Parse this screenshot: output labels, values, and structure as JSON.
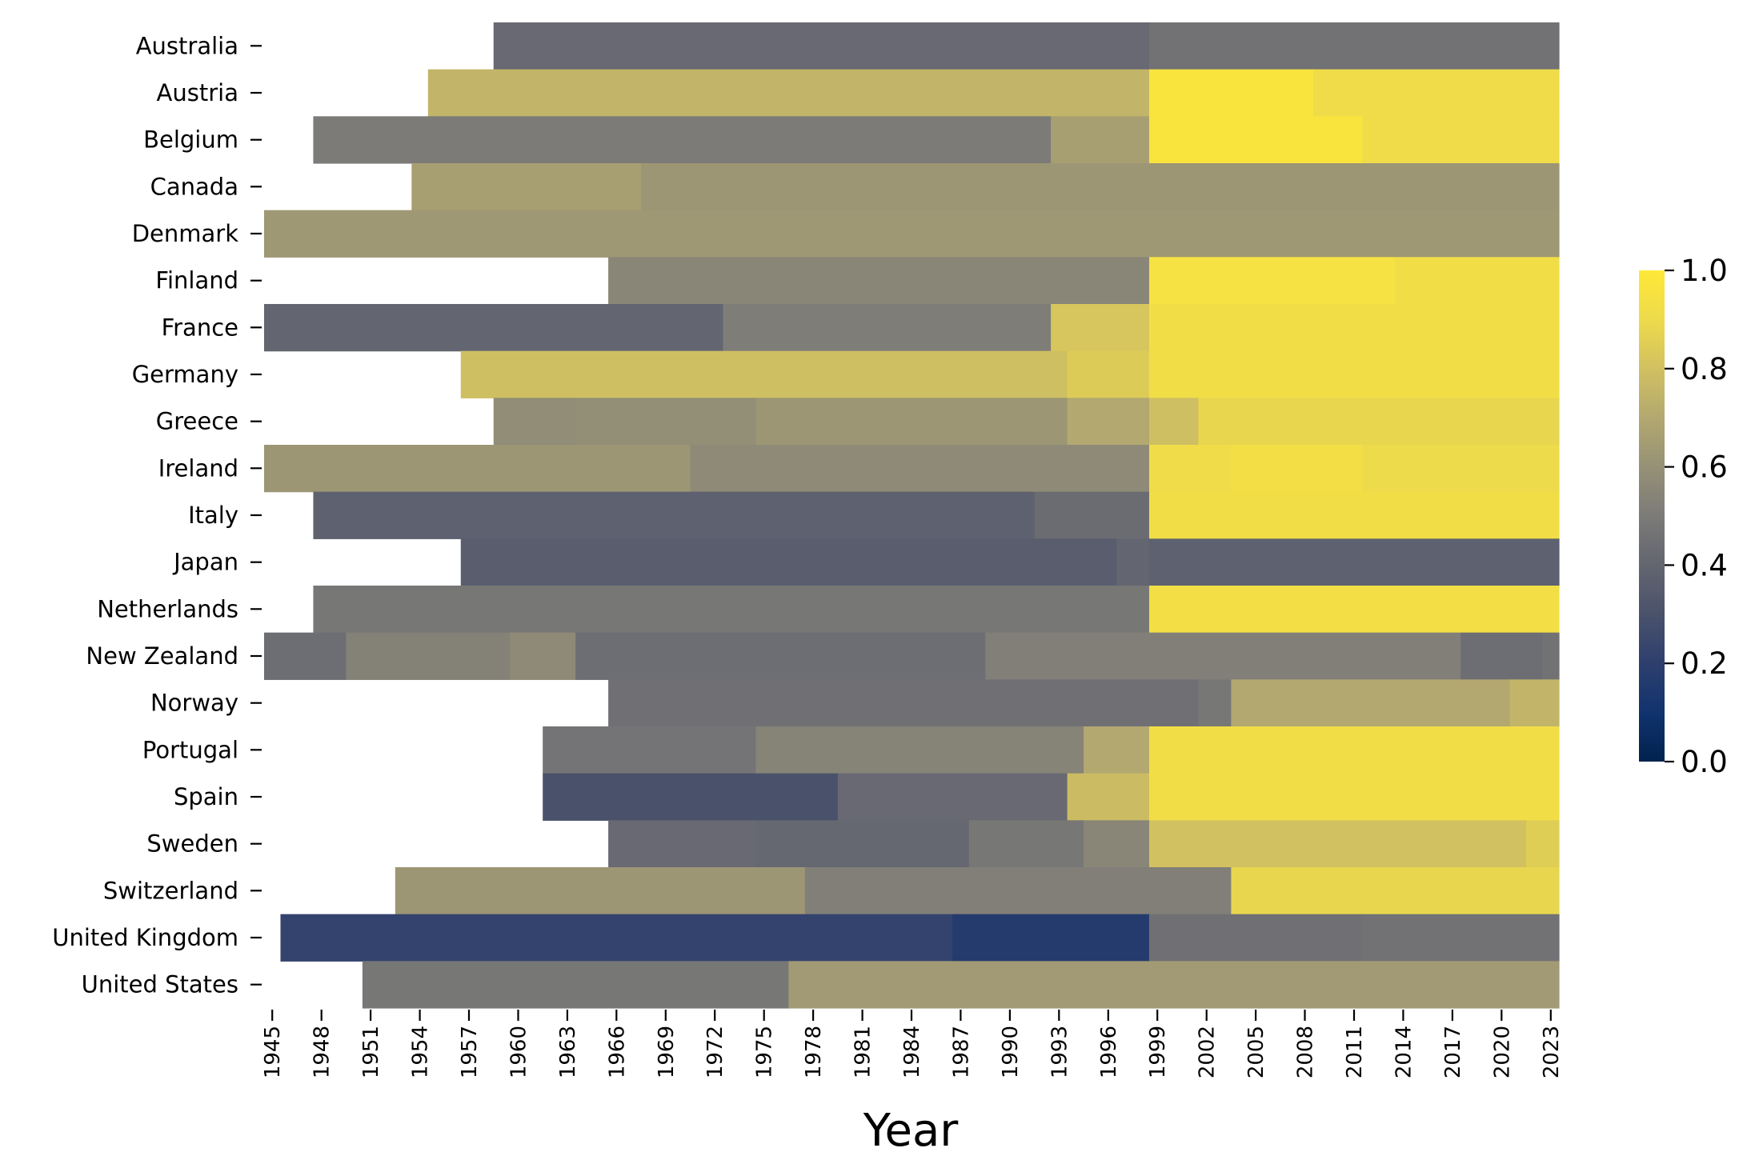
{
  "chart_data": {
    "type": "heatmap",
    "title": "",
    "xlabel": "Year",
    "ylabel": "",
    "colormap": "cividis",
    "colorbar": {
      "min": 0.0,
      "max": 1.0,
      "ticks": [
        "0.0",
        "0.2",
        "0.4",
        "0.6",
        "0.8",
        "1.0"
      ]
    },
    "year_range": [
      1945,
      2023
    ],
    "x_ticks": [
      "1945",
      "1948",
      "1951",
      "1954",
      "1957",
      "1960",
      "1963",
      "1966",
      "1969",
      "1972",
      "1975",
      "1978",
      "1981",
      "1984",
      "1987",
      "1990",
      "1993",
      "1996",
      "1999",
      "2002",
      "2005",
      "2008",
      "2011",
      "2014",
      "2017",
      "2020",
      "2023"
    ],
    "rows": [
      {
        "country": "Australia",
        "segments": [
          {
            "from": 1959,
            "to": 1998,
            "value": 0.42
          },
          {
            "from": 1999,
            "to": 2023,
            "value": 0.46
          }
        ]
      },
      {
        "country": "Austria",
        "segments": [
          {
            "from": 1955,
            "to": 1998,
            "value": 0.75
          },
          {
            "from": 1999,
            "to": 2008,
            "value": 0.97
          },
          {
            "from": 2009,
            "to": 2023,
            "value": 0.91
          }
        ]
      },
      {
        "country": "Belgium",
        "segments": [
          {
            "from": 1948,
            "to": 1992,
            "value": 0.5
          },
          {
            "from": 1993,
            "to": 1998,
            "value": 0.66
          },
          {
            "from": 1999,
            "to": 2011,
            "value": 0.97
          },
          {
            "from": 2012,
            "to": 2023,
            "value": 0.91
          }
        ]
      },
      {
        "country": "Canada",
        "segments": [
          {
            "from": 1954,
            "to": 1967,
            "value": 0.66
          },
          {
            "from": 1968,
            "to": 2023,
            "value": 0.62
          }
        ]
      },
      {
        "country": "Denmark",
        "segments": [
          {
            "from": 1945,
            "to": 2023,
            "value": 0.63
          }
        ]
      },
      {
        "country": "Finland",
        "segments": [
          {
            "from": 1966,
            "to": 1998,
            "value": 0.55
          },
          {
            "from": 1999,
            "to": 2013,
            "value": 0.95
          },
          {
            "from": 2014,
            "to": 2023,
            "value": 0.92
          }
        ]
      },
      {
        "country": "France",
        "segments": [
          {
            "from": 1945,
            "to": 1972,
            "value": 0.4
          },
          {
            "from": 1973,
            "to": 1992,
            "value": 0.51
          },
          {
            "from": 1993,
            "to": 1998,
            "value": 0.82
          },
          {
            "from": 1999,
            "to": 2023,
            "value": 0.92
          }
        ]
      },
      {
        "country": "Germany",
        "segments": [
          {
            "from": 1957,
            "to": 1993,
            "value": 0.79
          },
          {
            "from": 1994,
            "to": 1998,
            "value": 0.84
          },
          {
            "from": 1999,
            "to": 2023,
            "value": 0.92
          }
        ]
      },
      {
        "country": "Greece",
        "segments": [
          {
            "from": 1959,
            "to": 1963,
            "value": 0.58
          },
          {
            "from": 1964,
            "to": 1974,
            "value": 0.59
          },
          {
            "from": 1975,
            "to": 1993,
            "value": 0.62
          },
          {
            "from": 1994,
            "to": 1998,
            "value": 0.7
          },
          {
            "from": 1999,
            "to": 2001,
            "value": 0.79
          },
          {
            "from": 2002,
            "to": 2023,
            "value": 0.88
          }
        ]
      },
      {
        "country": "Ireland",
        "segments": [
          {
            "from": 1945,
            "to": 1970,
            "value": 0.62
          },
          {
            "from": 1971,
            "to": 1998,
            "value": 0.57
          },
          {
            "from": 1999,
            "to": 2003,
            "value": 0.91
          },
          {
            "from": 2004,
            "to": 2011,
            "value": 0.93
          },
          {
            "from": 2012,
            "to": 2023,
            "value": 0.9
          }
        ]
      },
      {
        "country": "Italy",
        "segments": [
          {
            "from": 1948,
            "to": 1991,
            "value": 0.38
          },
          {
            "from": 1992,
            "to": 1998,
            "value": 0.43
          },
          {
            "from": 1999,
            "to": 2023,
            "value": 0.92
          }
        ]
      },
      {
        "country": "Japan",
        "segments": [
          {
            "from": 1957,
            "to": 1996,
            "value": 0.36
          },
          {
            "from": 1997,
            "to": 1998,
            "value": 0.4
          },
          {
            "from": 1999,
            "to": 2023,
            "value": 0.38
          }
        ]
      },
      {
        "country": "Netherlands",
        "segments": [
          {
            "from": 1948,
            "to": 1998,
            "value": 0.48
          },
          {
            "from": 1999,
            "to": 2023,
            "value": 0.93
          }
        ]
      },
      {
        "country": "New Zealand",
        "segments": [
          {
            "from": 1945,
            "to": 1949,
            "value": 0.44
          },
          {
            "from": 1950,
            "to": 1959,
            "value": 0.53
          },
          {
            "from": 1960,
            "to": 1963,
            "value": 0.57
          },
          {
            "from": 1964,
            "to": 1988,
            "value": 0.44
          },
          {
            "from": 1989,
            "to": 2017,
            "value": 0.52
          },
          {
            "from": 2018,
            "to": 2022,
            "value": 0.44
          },
          {
            "from": 2023,
            "to": 2023,
            "value": 0.46
          }
        ]
      },
      {
        "country": "Norway",
        "segments": [
          {
            "from": 1966,
            "to": 2001,
            "value": 0.45
          },
          {
            "from": 2002,
            "to": 2003,
            "value": 0.48
          },
          {
            "from": 2004,
            "to": 2020,
            "value": 0.7
          },
          {
            "from": 2021,
            "to": 2023,
            "value": 0.75
          }
        ]
      },
      {
        "country": "Portugal",
        "segments": [
          {
            "from": 1962,
            "to": 1974,
            "value": 0.47
          },
          {
            "from": 1975,
            "to": 1994,
            "value": 0.54
          },
          {
            "from": 1995,
            "to": 1998,
            "value": 0.7
          },
          {
            "from": 1999,
            "to": 2023,
            "value": 0.92
          }
        ]
      },
      {
        "country": "Spain",
        "segments": [
          {
            "from": 1962,
            "to": 1979,
            "value": 0.3
          },
          {
            "from": 1980,
            "to": 1993,
            "value": 0.42
          },
          {
            "from": 1994,
            "to": 1998,
            "value": 0.78
          },
          {
            "from": 1999,
            "to": 2023,
            "value": 0.92
          }
        ]
      },
      {
        "country": "Sweden",
        "segments": [
          {
            "from": 1966,
            "to": 1974,
            "value": 0.42
          },
          {
            "from": 1975,
            "to": 1987,
            "value": 0.41
          },
          {
            "from": 1988,
            "to": 1994,
            "value": 0.48
          },
          {
            "from": 1995,
            "to": 1998,
            "value": 0.55
          },
          {
            "from": 1999,
            "to": 2021,
            "value": 0.8
          },
          {
            "from": 2022,
            "to": 2023,
            "value": 0.85
          }
        ]
      },
      {
        "country": "Switzerland",
        "segments": [
          {
            "from": 1953,
            "to": 1977,
            "value": 0.62
          },
          {
            "from": 1978,
            "to": 2003,
            "value": 0.52
          },
          {
            "from": 2004,
            "to": 2023,
            "value": 0.88
          }
        ]
      },
      {
        "country": "United Kingdom",
        "segments": [
          {
            "from": 1946,
            "to": 1986,
            "value": 0.22
          },
          {
            "from": 1987,
            "to": 1998,
            "value": 0.17
          },
          {
            "from": 1999,
            "to": 2011,
            "value": 0.45
          },
          {
            "from": 2012,
            "to": 2023,
            "value": 0.46
          }
        ]
      },
      {
        "country": "United States",
        "segments": [
          {
            "from": 1951,
            "to": 1976,
            "value": 0.48
          },
          {
            "from": 1977,
            "to": 2023,
            "value": 0.64
          }
        ]
      }
    ]
  }
}
